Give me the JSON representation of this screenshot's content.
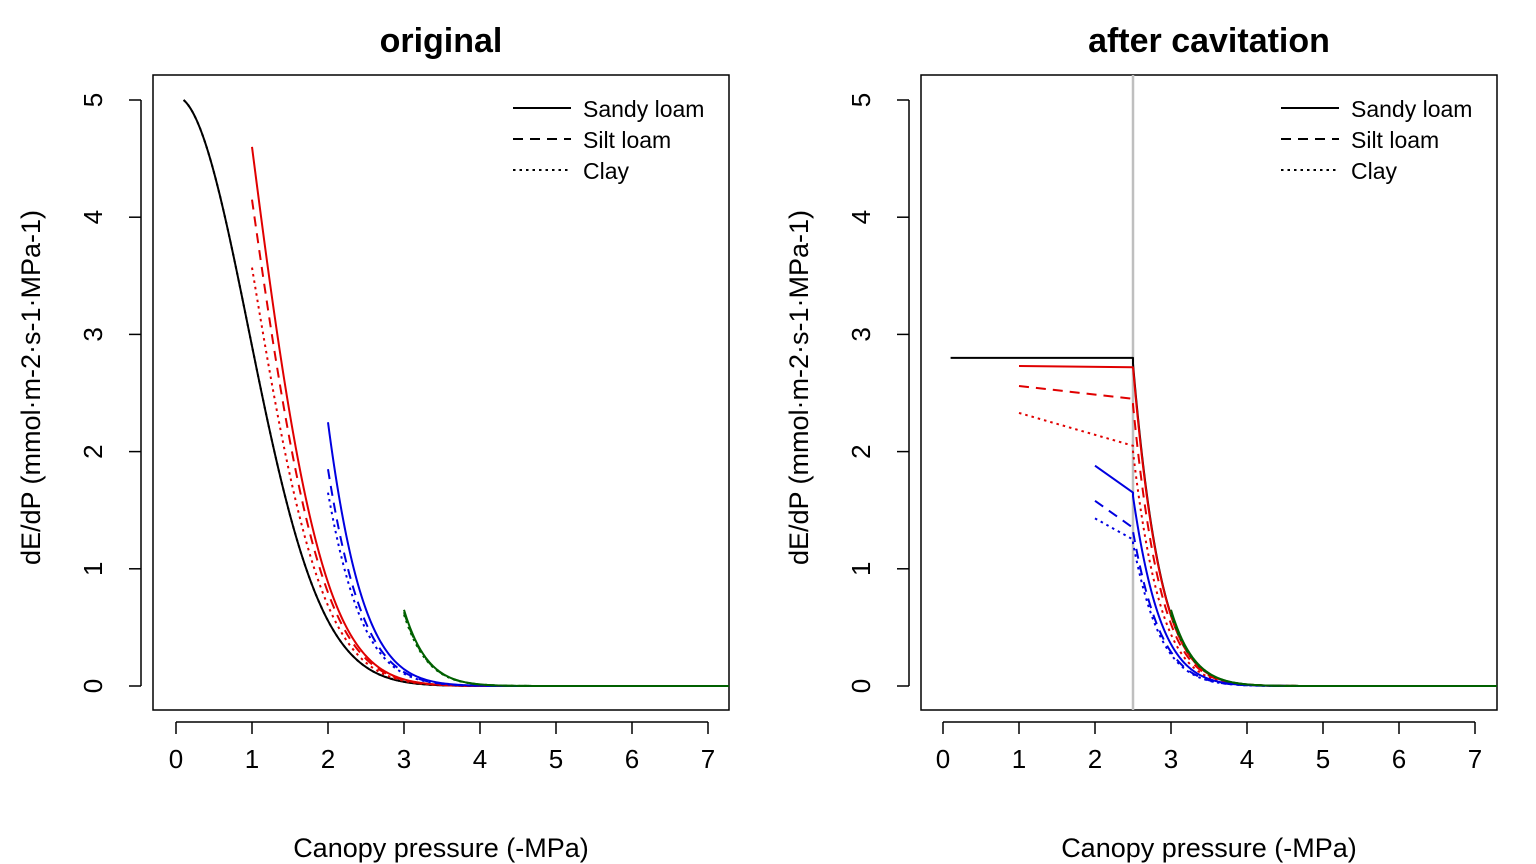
{
  "legend_entries": [
    {
      "label": "Sandy loam",
      "dash": "solid"
    },
    {
      "label": "Silt loam",
      "dash": "dashed"
    },
    {
      "label": "Clay",
      "dash": "dotted"
    }
  ],
  "colors": {
    "black": "#000000",
    "red": "#e00000",
    "blue": "#0000e0",
    "green": "#006000",
    "cavitation_line": "#bfbfbf"
  },
  "chart_data": [
    {
      "type": "line",
      "title": "original",
      "xlabel": "Canopy pressure (-MPa)",
      "ylabel": "dE/dP (mmol·m-2·s-1·MPa-1)",
      "xlim": [
        0,
        7
      ],
      "ylim": [
        0,
        5
      ],
      "x_ticks": [
        "0",
        "1",
        "2",
        "3",
        "4",
        "5",
        "6",
        "7"
      ],
      "y_ticks": [
        "0",
        "1",
        "2",
        "3",
        "4",
        "5"
      ],
      "legend_position": "top-right",
      "series": [
        {
          "color": "black",
          "dash": "solid",
          "start_x": 0.1,
          "start_y": 5.0
        },
        {
          "color": "black",
          "dash": "dotted",
          "start_x": 0.1,
          "start_y": 5.0
        },
        {
          "color": "red",
          "dash": "solid",
          "start_x": 1.0,
          "start_y": 4.6
        },
        {
          "color": "red",
          "dash": "dashed",
          "start_x": 1.0,
          "start_y": 4.15
        },
        {
          "color": "red",
          "dash": "dotted",
          "start_x": 1.0,
          "start_y": 3.57
        },
        {
          "color": "blue",
          "dash": "solid",
          "start_x": 2.0,
          "start_y": 2.25
        },
        {
          "color": "blue",
          "dash": "dashed",
          "start_x": 2.0,
          "start_y": 1.85
        },
        {
          "color": "blue",
          "dash": "dotted",
          "start_x": 2.0,
          "start_y": 1.65
        },
        {
          "color": "green",
          "dash": "solid",
          "start_x": 3.0,
          "start_y": 0.65
        },
        {
          "color": "green",
          "dash": "dashed",
          "start_x": 3.0,
          "start_y": 0.63
        },
        {
          "color": "green",
          "dash": "dotted",
          "start_x": 3.0,
          "start_y": 0.61
        }
      ]
    },
    {
      "type": "line",
      "title": "after cavitation",
      "xlabel": "Canopy pressure (-MPa)",
      "ylabel": "dE/dP (mmol·m-2·s-1·MPa-1)",
      "xlim": [
        0,
        7
      ],
      "ylim": [
        0,
        5
      ],
      "x_ticks": [
        "0",
        "1",
        "2",
        "3",
        "4",
        "5",
        "6",
        "7"
      ],
      "y_ticks": [
        "0",
        "1",
        "2",
        "3",
        "4",
        "5"
      ],
      "legend_position": "top-right",
      "cavitation_x": 2.5,
      "series": [
        {
          "color": "black",
          "dash": "solid",
          "start_x": 0.1,
          "plateau_start": 2.8,
          "plateau_end": 2.8,
          "jump_y": 2.75
        },
        {
          "color": "red",
          "dash": "solid",
          "start_x": 1.0,
          "plateau_start": 2.73,
          "plateau_end": 2.72,
          "jump_y": 2.72
        },
        {
          "color": "red",
          "dash": "dashed",
          "start_x": 1.0,
          "plateau_start": 2.56,
          "plateau_end": 2.45,
          "jump_y": 2.4
        },
        {
          "color": "red",
          "dash": "dotted",
          "start_x": 1.0,
          "plateau_start": 2.33,
          "plateau_end": 2.05,
          "jump_y": 2.0
        },
        {
          "color": "blue",
          "dash": "solid",
          "start_x": 2.0,
          "plateau_start": 1.88,
          "plateau_end": 1.65,
          "jump_y": 1.62
        },
        {
          "color": "blue",
          "dash": "dashed",
          "start_x": 2.0,
          "plateau_start": 1.58,
          "plateau_end": 1.35,
          "jump_y": 1.32
        },
        {
          "color": "blue",
          "dash": "dotted",
          "start_x": 2.0,
          "plateau_start": 1.43,
          "plateau_end": 1.25,
          "jump_y": 1.22
        },
        {
          "color": "green",
          "dash": "solid",
          "start_x": 3.0,
          "start_y": 0.65
        },
        {
          "color": "green",
          "dash": "dashed",
          "start_x": 3.0,
          "start_y": 0.63
        },
        {
          "color": "green",
          "dash": "dotted",
          "start_x": 3.0,
          "start_y": 0.61
        }
      ]
    }
  ]
}
